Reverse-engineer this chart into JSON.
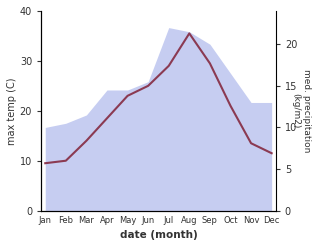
{
  "months": [
    "Jan",
    "Feb",
    "Mar",
    "Apr",
    "May",
    "Jun",
    "Jul",
    "Aug",
    "Sep",
    "Oct",
    "Nov",
    "Dec"
  ],
  "max_temp": [
    9.5,
    10.0,
    14.0,
    18.5,
    23.0,
    25.0,
    29.0,
    35.5,
    29.5,
    21.0,
    13.5,
    11.5
  ],
  "precipitation_kg": [
    10.0,
    10.5,
    11.5,
    14.5,
    14.5,
    15.5,
    22.0,
    21.5,
    20.0,
    16.5,
    13.0,
    13.0
  ],
  "temp_color": "#8B3A52",
  "precip_fill_color": "#c0c8f0",
  "ylabel_left": "max temp (C)",
  "ylabel_right": "med. precipitation\n(kg/m2)",
  "xlabel": "date (month)",
  "ylim_left": [
    0,
    40
  ],
  "ylim_right": [
    0,
    24
  ],
  "right_axis_ticks": [
    0,
    5,
    10,
    15,
    20
  ],
  "left_axis_ticks": [
    0,
    10,
    20,
    30,
    40
  ]
}
